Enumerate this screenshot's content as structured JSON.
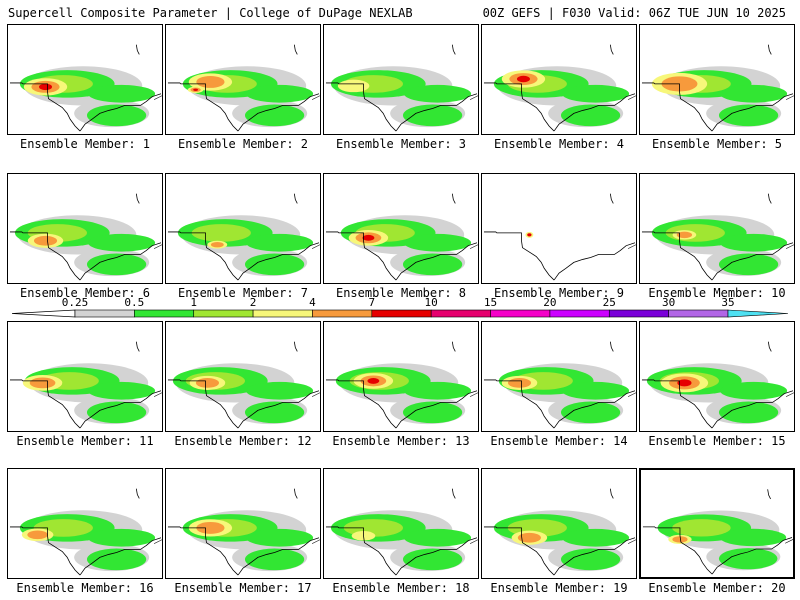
{
  "header": {
    "title": "Supercell Composite Parameter | College of DuPage NEXLAB",
    "run_info": "00Z GEFS | F030 Valid: 06Z TUE JUN 10 2025"
  },
  "colorbar": {
    "ticks": [
      "0.25",
      "0.5",
      "1",
      "2",
      "4",
      "7",
      "10",
      "15",
      "20",
      "25",
      "30",
      "35"
    ],
    "colors": [
      "#d3d3d3",
      "#32e633",
      "#a0e632",
      "#f7f77a",
      "#f79a3c",
      "#e60000",
      "#e6006e",
      "#f500c8",
      "#cc00ff",
      "#7a00d9",
      "#b266e6",
      "#4ee1f2"
    ]
  },
  "panels": [
    {
      "label": "Ensemble Member: 1"
    },
    {
      "label": "Ensemble Member: 2"
    },
    {
      "label": "Ensemble Member: 3"
    },
    {
      "label": "Ensemble Member: 4"
    },
    {
      "label": "Ensemble Member: 5"
    },
    {
      "label": "Ensemble Member: 6"
    },
    {
      "label": "Ensemble Member: 7"
    },
    {
      "label": "Ensemble Member: 8"
    },
    {
      "label": "Ensemble Member: 9"
    },
    {
      "label": "Ensemble Member: 10"
    },
    {
      "label": "Ensemble Member: 11"
    },
    {
      "label": "Ensemble Member: 12"
    },
    {
      "label": "Ensemble Member: 13"
    },
    {
      "label": "Ensemble Member: 14"
    },
    {
      "label": "Ensemble Member: 15"
    },
    {
      "label": "Ensemble Member: 16"
    },
    {
      "label": "Ensemble Member: 17"
    },
    {
      "label": "Ensemble Member: 18"
    },
    {
      "label": "Ensemble Member: 19"
    },
    {
      "label": "Ensemble Member: 20",
      "selected": true
    }
  ]
}
